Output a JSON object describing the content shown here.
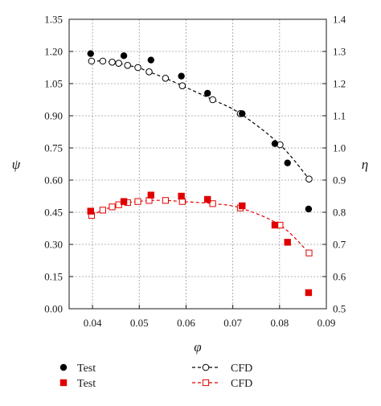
{
  "chart_data": {
    "type": "scatter",
    "xlabel": "φ",
    "ylabel_left": "ψ",
    "ylabel_right": "η",
    "xlim": [
      0.035,
      0.09
    ],
    "ylim_left": [
      0.0,
      1.35
    ],
    "ylim_right": [
      0.5,
      1.4
    ],
    "x_ticks": [
      "0.04",
      "0.05",
      "0.06",
      "0.07",
      "0.08",
      "0.09"
    ],
    "x_tick_values": [
      0.04,
      0.05,
      0.06,
      0.07,
      0.08,
      0.09
    ],
    "y_left_ticks": [
      "0.00",
      "0.15",
      "0.30",
      "0.45",
      "0.60",
      "0.75",
      "0.90",
      "1.05",
      "1.20",
      "1.35"
    ],
    "y_left_tick_values": [
      0.0,
      0.15,
      0.3,
      0.45,
      0.6,
      0.75,
      0.9,
      1.05,
      1.2,
      1.35
    ],
    "y_right_ticks": [
      "0.5",
      "0.6",
      "0.7",
      "0.8",
      "0.9",
      "1.0",
      "1.1",
      "1.2",
      "1.3",
      "1.4"
    ],
    "y_right_tick_values": [
      0.5,
      0.6,
      0.7,
      0.8,
      0.9,
      1.0,
      1.1,
      1.2,
      1.3,
      1.4
    ],
    "grid": true,
    "series": [
      {
        "name": "Test",
        "kind": "test-head",
        "axis": "left",
        "marker": "filled-circle",
        "color": "#000000",
        "x": [
          0.0396,
          0.0467,
          0.0525,
          0.059,
          0.0646,
          0.072,
          0.079,
          0.0817,
          0.0862
        ],
        "y": [
          1.19,
          1.18,
          1.16,
          1.085,
          1.005,
          0.91,
          0.77,
          0.68,
          0.465
        ]
      },
      {
        "name": "Test",
        "kind": "test-efficiency",
        "axis": "left",
        "marker": "filled-square",
        "color": "#e00000",
        "x": [
          0.0396,
          0.0467,
          0.0525,
          0.059,
          0.0646,
          0.072,
          0.079,
          0.0817,
          0.0862
        ],
        "y": [
          0.455,
          0.5,
          0.53,
          0.525,
          0.51,
          0.48,
          0.39,
          0.31,
          0.075
        ]
      },
      {
        "name": "CFD",
        "kind": "cfd-head",
        "axis": "left",
        "marker": "open-circle",
        "line": "dashed",
        "color": "#000000",
        "x": [
          0.0398,
          0.0422,
          0.0442,
          0.0456,
          0.0475,
          0.0497,
          0.0521,
          0.0556,
          0.0592,
          0.0657,
          0.0716,
          0.0801,
          0.0863
        ],
        "y": [
          1.155,
          1.155,
          1.15,
          1.145,
          1.135,
          1.125,
          1.105,
          1.075,
          1.04,
          0.975,
          0.91,
          0.765,
          0.605
        ]
      },
      {
        "name": "CFD",
        "kind": "cfd-efficiency",
        "axis": "left",
        "marker": "open-square",
        "line": "dashed",
        "color": "#e00000",
        "x": [
          0.0398,
          0.0422,
          0.0442,
          0.0456,
          0.0475,
          0.0497,
          0.0521,
          0.0556,
          0.0592,
          0.0657,
          0.0716,
          0.0801,
          0.0863
        ],
        "y": [
          0.435,
          0.46,
          0.475,
          0.485,
          0.495,
          0.5,
          0.505,
          0.505,
          0.5,
          0.49,
          0.47,
          0.39,
          0.26
        ]
      }
    ],
    "legend": {
      "placement": "bottom",
      "entries": [
        {
          "label": "Test",
          "marker": "filled-circle",
          "color": "#000000",
          "line": false
        },
        {
          "label": "Test",
          "marker": "filled-square",
          "color": "#e00000",
          "line": false
        },
        {
          "label": "CFD",
          "marker": "open-circle",
          "color": "#000000",
          "line": true
        },
        {
          "label": "CFD",
          "marker": "open-square",
          "color": "#e00000",
          "line": true
        }
      ]
    }
  }
}
